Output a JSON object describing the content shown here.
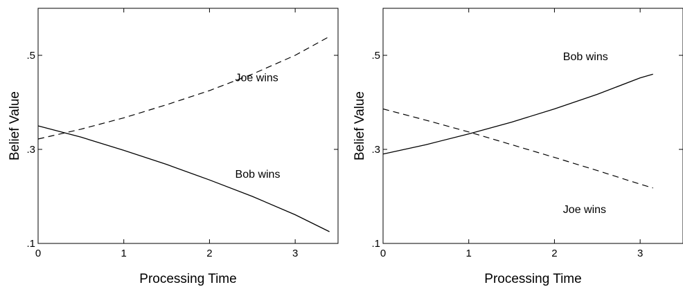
{
  "chart_data": [
    {
      "type": "line",
      "xlabel": "Processing Time",
      "ylabel": "Belief Value",
      "xlim": [
        0,
        3.5
      ],
      "ylim": [
        0.1,
        0.6
      ],
      "xticks": [
        0,
        1,
        2,
        3
      ],
      "xtick_labels": [
        "0",
        "1",
        "2",
        "3"
      ],
      "yticks": [
        0.1,
        0.3,
        0.5
      ],
      "ytick_labels": [
        ".1",
        ".3",
        ".5"
      ],
      "grid": false,
      "series": [
        {
          "name": "Bob wins",
          "style": "solid",
          "x": [
            0,
            0.5,
            1,
            1.5,
            2,
            2.5,
            3,
            3.4
          ],
          "y": [
            0.35,
            0.326,
            0.298,
            0.268,
            0.235,
            0.2,
            0.161,
            0.125
          ]
        },
        {
          "name": "Joe wins",
          "style": "dashed",
          "x": [
            0,
            0.5,
            1,
            1.5,
            2,
            2.5,
            3,
            3.4
          ],
          "y": [
            0.322,
            0.343,
            0.367,
            0.395,
            0.425,
            0.46,
            0.5,
            0.54
          ]
        }
      ],
      "annotations": [
        {
          "text": "Joe wins",
          "x": 2.3,
          "y": 0.445
        },
        {
          "text": "Bob wins",
          "x": 2.3,
          "y": 0.24
        }
      ]
    },
    {
      "type": "line",
      "xlabel": "Processing Time",
      "ylabel": "Belief Value",
      "xlim": [
        0,
        3.5
      ],
      "ylim": [
        0.1,
        0.6
      ],
      "xticks": [
        0,
        1,
        2,
        3
      ],
      "xtick_labels": [
        "0",
        "1",
        "2",
        "3"
      ],
      "yticks": [
        0.1,
        0.3,
        0.5
      ],
      "ytick_labels": [
        ".1",
        ".3",
        ".5"
      ],
      "grid": false,
      "series": [
        {
          "name": "Bob wins",
          "style": "solid",
          "x": [
            0,
            0.5,
            1,
            1.5,
            2,
            2.5,
            3,
            3.15
          ],
          "y": [
            0.29,
            0.31,
            0.333,
            0.358,
            0.386,
            0.417,
            0.452,
            0.46
          ]
        },
        {
          "name": "Joe wins",
          "style": "dashed",
          "x": [
            0,
            0.5,
            1,
            1.5,
            2,
            2.5,
            3,
            3.15
          ],
          "y": [
            0.386,
            0.362,
            0.337,
            0.31,
            0.283,
            0.255,
            0.226,
            0.218
          ]
        }
      ],
      "annotations": [
        {
          "text": "Bob wins",
          "x": 2.1,
          "y": 0.49
        },
        {
          "text": "Joe wins",
          "x": 2.1,
          "y": 0.165
        }
      ]
    }
  ]
}
